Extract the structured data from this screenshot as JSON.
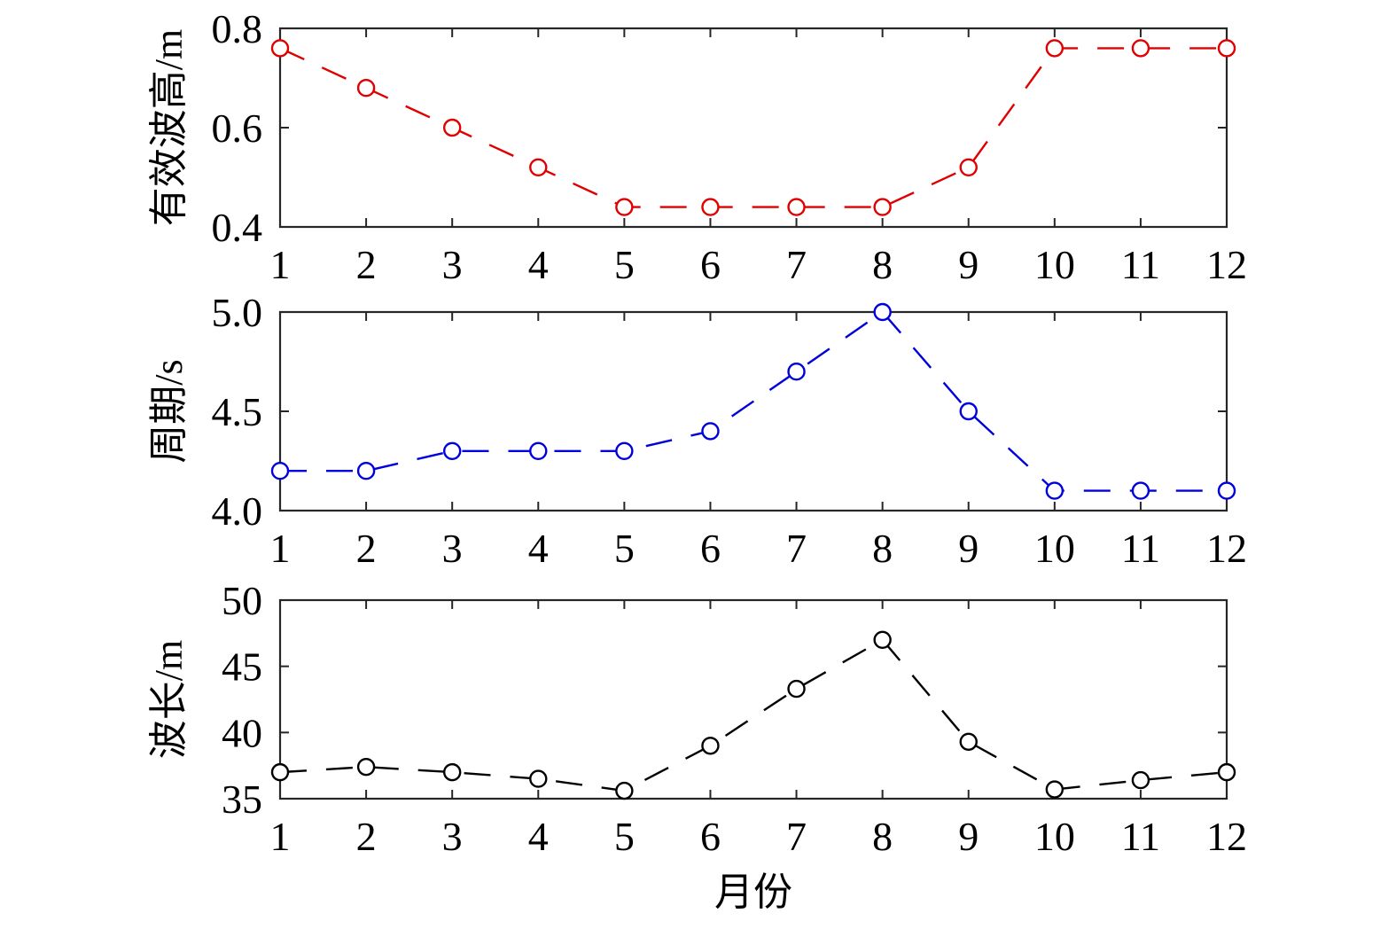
{
  "chart_data": [
    {
      "type": "line",
      "x": [
        1,
        2,
        3,
        4,
        5,
        6,
        7,
        8,
        9,
        10,
        11,
        12
      ],
      "xticks": [
        "1",
        "2",
        "3",
        "4",
        "5",
        "6",
        "7",
        "8",
        "9",
        "10",
        "11",
        "12"
      ],
      "xlabel": "",
      "ylabel": "有效波高/m",
      "ylim": [
        0.4,
        0.8
      ],
      "yticks": [
        "0.4",
        "0.6",
        "0.8"
      ],
      "grid": false,
      "line_style": "dashed",
      "marker": "open-circle",
      "color": "#e00000",
      "series": [
        {
          "values": [
            0.76,
            0.68,
            0.6,
            0.52,
            0.44,
            0.44,
            0.44,
            0.44,
            0.52,
            0.76,
            0.76,
            0.76
          ]
        }
      ]
    },
    {
      "type": "line",
      "x": [
        1,
        2,
        3,
        4,
        5,
        6,
        7,
        8,
        9,
        10,
        11,
        12
      ],
      "xticks": [
        "1",
        "2",
        "3",
        "4",
        "5",
        "6",
        "7",
        "8",
        "9",
        "10",
        "11",
        "12"
      ],
      "xlabel": "",
      "ylabel": "周期/s",
      "ylim": [
        4.0,
        5.0
      ],
      "yticks": [
        "4.0",
        "4.5",
        "5.0"
      ],
      "grid": false,
      "line_style": "dashed",
      "marker": "open-circle",
      "color": "#0000dd",
      "series": [
        {
          "values": [
            4.2,
            4.2,
            4.3,
            4.3,
            4.3,
            4.4,
            4.7,
            5.0,
            4.5,
            4.1,
            4.1,
            4.1
          ]
        }
      ]
    },
    {
      "type": "line",
      "x": [
        1,
        2,
        3,
        4,
        5,
        6,
        7,
        8,
        9,
        10,
        11,
        12
      ],
      "xticks": [
        "1",
        "2",
        "3",
        "4",
        "5",
        "6",
        "7",
        "8",
        "9",
        "10",
        "11",
        "12"
      ],
      "xlabel": "月份",
      "ylabel": "波长/m",
      "ylim": [
        35,
        50
      ],
      "yticks": [
        "35",
        "40",
        "45",
        "50"
      ],
      "grid": false,
      "line_style": "dashed",
      "marker": "open-circle",
      "color": "#000000",
      "series": [
        {
          "values": [
            37.0,
            37.4,
            37.0,
            36.5,
            35.6,
            39.0,
            43.3,
            47.0,
            39.3,
            35.7,
            36.4,
            37.0
          ]
        }
      ]
    }
  ]
}
